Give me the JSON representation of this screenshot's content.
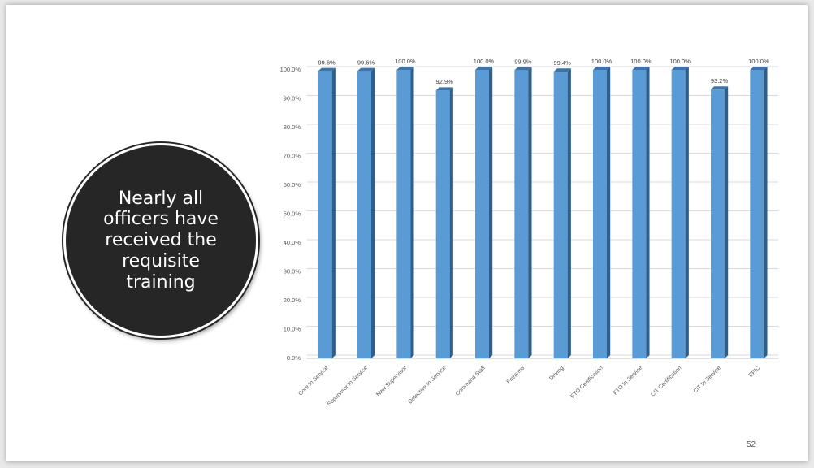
{
  "slide": {
    "callout_text": "Nearly all officers have received the requisite training",
    "page_number": "52"
  },
  "chart_data": {
    "type": "bar",
    "categories": [
      "Core In Service",
      "Supervisor In Service",
      "New Supervisor",
      "Detective In Service",
      "Command Staff",
      "Firearms",
      "Driving",
      "FTO Certification",
      "FTO In Service",
      "CIT Certification",
      "CIT In Service",
      "EPIC"
    ],
    "values": [
      99.6,
      99.6,
      100.0,
      92.9,
      100.0,
      99.9,
      99.4,
      100.0,
      100.0,
      100.0,
      93.2,
      100.0
    ],
    "data_labels": [
      "99.6%",
      "99.6%",
      "100.0%",
      "92.9%",
      "100.0%",
      "99.9%",
      "99.4%",
      "100.0%",
      "100.0%",
      "100.0%",
      "93.2%",
      "100.0%"
    ],
    "yticks": [
      "0.0%",
      "10.0%",
      "20.0%",
      "30.0%",
      "40.0%",
      "50.0%",
      "60.0%",
      "70.0%",
      "80.0%",
      "90.0%",
      "100.0%"
    ],
    "ylim": [
      0,
      100
    ],
    "grid": true,
    "bar_color": "#5b9bd5",
    "bar_side_color": "#2e5f8c",
    "bar_top_color": "#3d73a6"
  }
}
